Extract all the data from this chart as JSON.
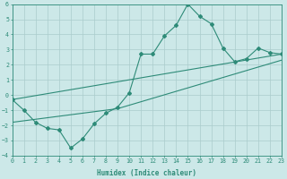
{
  "main_x": [
    0,
    1,
    2,
    3,
    4,
    5,
    6,
    7,
    8,
    9,
    10,
    11,
    12,
    13,
    14,
    15,
    16,
    17,
    18,
    19,
    20,
    21,
    22,
    23
  ],
  "main_y": [
    -0.3,
    -1.0,
    -1.8,
    -2.2,
    -2.3,
    -3.5,
    -2.9,
    -1.9,
    -1.2,
    -0.8,
    0.15,
    2.7,
    2.7,
    3.9,
    4.6,
    6.0,
    5.2,
    4.7,
    3.1,
    2.2,
    2.4,
    3.1,
    2.8,
    2.7
  ],
  "line2_x": [
    0,
    23
  ],
  "line2_y": [
    -0.3,
    2.7
  ],
  "line3_x": [
    0,
    9,
    23
  ],
  "line3_y": [
    -1.8,
    -0.9,
    2.3
  ],
  "line_color": "#2e8b78",
  "bg_color": "#cce8e8",
  "grid_color": "#aacccc",
  "xlabel": "Humidex (Indice chaleur)",
  "xlim": [
    0,
    23
  ],
  "ylim": [
    -4,
    6
  ],
  "yticks": [
    -4,
    -3,
    -2,
    -1,
    0,
    1,
    2,
    3,
    4,
    5,
    6
  ],
  "xticks": [
    0,
    1,
    2,
    3,
    4,
    5,
    6,
    7,
    8,
    9,
    10,
    11,
    12,
    13,
    14,
    15,
    16,
    17,
    18,
    19,
    20,
    21,
    22,
    23
  ]
}
